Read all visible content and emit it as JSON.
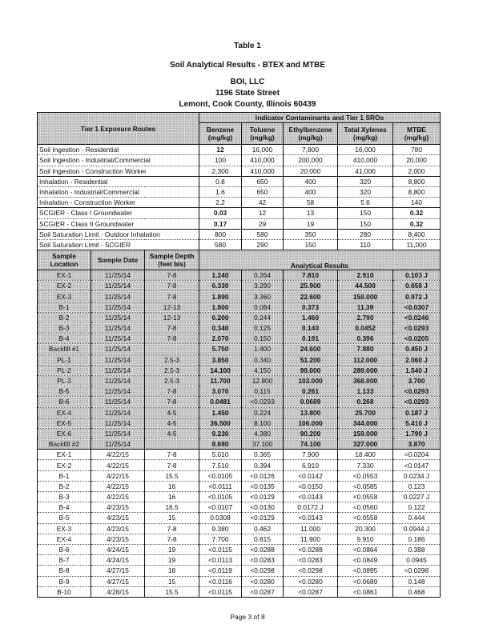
{
  "title": {
    "table_no": "Table 1",
    "subtitle": "Soil Analytical Results - BTEX and MTBE",
    "company": "BOI, LLC",
    "street": "1196 State Street",
    "city": "Lemont, Cook County, Illinois 60439"
  },
  "header": {
    "routes_label": "Tier 1 Exposure Routes",
    "group_label": "Indicator Contaminants and Tier 1 SROs",
    "columns": [
      "Benzene (mg/kg)",
      "Toluene (mg/kg)",
      "Ethylbenzene (mg/kg)",
      "Total Xylenes (mg/kg)",
      "MTBE (mg/kg)"
    ]
  },
  "sros": [
    {
      "route": "Soil Ingestion - Residential",
      "v": [
        "12",
        "16,000",
        "7,800",
        "16,000",
        "780"
      ],
      "grp": true
    },
    {
      "route": "Soil Ingestion - Industrial/Commercial",
      "v": [
        "100",
        "410,000",
        "200,000",
        "410,000",
        "20,000"
      ]
    },
    {
      "route": "Soil Ingestion - Construction Worker",
      "v": [
        "2,300",
        "410,000",
        "20,000",
        "41,000",
        "2,000"
      ]
    },
    {
      "route": "Inhalation - Residential",
      "v": [
        "0.8",
        "650",
        "400",
        "320",
        "8,800"
      ],
      "grp": true
    },
    {
      "route": "Inhalation - Industrial/Commercial",
      "v": [
        "1.6",
        "650",
        "400",
        "320",
        "8,800"
      ]
    },
    {
      "route": "Inhalation - Construction Worker",
      "v": [
        "2.2",
        "42",
        "58",
        "5.6",
        "140"
      ]
    },
    {
      "route": "SCGIER - Class I Groundwater",
      "v": [
        "0.03",
        "12",
        "13",
        "150",
        "0.32"
      ],
      "grp": true
    },
    {
      "route": "SCGIER - Class II Groundwater",
      "v": [
        "0.17",
        "29",
        "19",
        "150",
        "0.32"
      ]
    },
    {
      "route": "Soil Saturation Limit - Outdoor Inhalation",
      "v": [
        "800",
        "580",
        "350",
        "280",
        "8,400"
      ],
      "grp": true
    },
    {
      "route": "Soil Saturation Limit - SCGIER",
      "v": [
        "580",
        "290",
        "150",
        "110",
        "11,000"
      ]
    }
  ],
  "sample_header": {
    "location": "Sample Location",
    "date": "Sample Date",
    "depth": "Sample Depth (feet bls)",
    "results": "Analytical Results"
  },
  "samples": [
    {
      "loc": "EX-1",
      "date": "11/25/14",
      "depth": "7-8",
      "v": [
        "1.240",
        "0.264",
        "7.810",
        "2.910",
        "0.103 J"
      ],
      "shade": true
    },
    {
      "loc": "EX-2",
      "date": "11/25/14",
      "depth": "7-8",
      "v": [
        "6.330",
        "3.290",
        "25.900",
        "44.500",
        "0.658 J"
      ],
      "shade": true
    },
    {
      "loc": "EX-3",
      "date": "11/25/14",
      "depth": "7-8",
      "v": [
        "1.890",
        "3.360",
        "22.600",
        "158.000",
        "0.972 J"
      ],
      "shade": true
    },
    {
      "loc": "B-1",
      "date": "11/25/14",
      "depth": "12-13",
      "v": [
        "1.800",
        "0.084",
        "0.373",
        "11.39",
        "<0.0307"
      ],
      "shade": true
    },
    {
      "loc": "B-2",
      "date": "11/25/14",
      "depth": "12-13",
      "v": [
        "6.200",
        "0.244",
        "1.460",
        "2.790",
        "<0.0246"
      ],
      "shade": true
    },
    {
      "loc": "B-3",
      "date": "11/25/14",
      "depth": "7-8",
      "v": [
        "0.340",
        "0.125",
        "0.140",
        "0.0452",
        "<0.0293"
      ],
      "shade": true
    },
    {
      "loc": "B-4",
      "date": "11/25/14",
      "depth": "7-8",
      "v": [
        "2.070",
        "0.150",
        "0.191",
        "0.396",
        "<0.0205"
      ],
      "shade": true
    },
    {
      "loc": "Backfill #1",
      "date": "11/25/14",
      "depth": "",
      "v": [
        "5.750",
        "1.400",
        "24.600",
        "7.880",
        "0.450 J"
      ],
      "shade": true
    },
    {
      "loc": "PL-1",
      "date": "11/25/14",
      "depth": "2.5-3",
      "v": [
        "3.850",
        "0.340",
        "51.200",
        "112.000",
        "2.060 J"
      ],
      "shade": true
    },
    {
      "loc": "PL-2",
      "date": "11/25/14",
      "depth": "2.5-3",
      "v": [
        "14.100",
        "4.150",
        "98.000",
        "289.000",
        "1.540 J"
      ],
      "shade": true
    },
    {
      "loc": "PL-3",
      "date": "11/25/14",
      "depth": "2.5-3",
      "v": [
        "11.700",
        "12.800",
        "103.000",
        "368.000",
        "3.700"
      ],
      "shade": true
    },
    {
      "loc": "B-5",
      "date": "11/25/14",
      "depth": "7-8",
      "v": [
        "3.070",
        "0.115",
        "0.261",
        "1.133",
        "<0.0293"
      ],
      "shade": true
    },
    {
      "loc": "B-6",
      "date": "11/25/14",
      "depth": "7-8",
      "v": [
        "0.0481",
        "<0.0293",
        "0.0689",
        "0.268",
        "<0.0293"
      ],
      "shade": true
    },
    {
      "loc": "EX-4",
      "date": "11/25/14",
      "depth": "4-5",
      "v": [
        "1.450",
        "0.224",
        "13.800",
        "25.700",
        "0.187 J"
      ],
      "shade": true
    },
    {
      "loc": "EX-5",
      "date": "11/25/14",
      "depth": "4-5",
      "v": [
        "36.500",
        "8.100",
        "106.000",
        "344.000",
        "5.410 J"
      ],
      "shade": true
    },
    {
      "loc": "EX-6",
      "date": "11/25/14",
      "depth": "4-5",
      "v": [
        "9.230",
        "4.380",
        "90.200",
        "159.000",
        "1.790 J"
      ],
      "shade": true
    },
    {
      "loc": "Backfill #2",
      "date": "11/25/14",
      "depth": "",
      "v": [
        "8.680",
        "37.100",
        "74.100",
        "327.000",
        "3.870"
      ],
      "shade": true
    },
    {
      "loc": "EX-1",
      "date": "4/22/15",
      "depth": "7-8",
      "v": [
        "5.010",
        "0.365",
        "7.900",
        "18.400",
        "<0.0204"
      ]
    },
    {
      "loc": "EX-2",
      "date": "4/22/15",
      "depth": "7-8",
      "v": [
        "7.510",
        "0.394",
        "6.910",
        "7.330",
        "<0.0147"
      ]
    },
    {
      "loc": "B-1",
      "date": "4/22/15",
      "depth": "15.5",
      "v": [
        "<0.0105",
        "<0.0126",
        "<0.0142",
        "<0.0553",
        "0.0234 J"
      ]
    },
    {
      "loc": "B-2",
      "date": "4/22/15",
      "depth": "16",
      "v": [
        "<0.0111",
        "<0.0135",
        "<0.0150",
        "<0.0585",
        "0.123"
      ]
    },
    {
      "loc": "B-3",
      "date": "4/22/15",
      "depth": "16",
      "v": [
        "<0.0105",
        "<0.0129",
        "<0.0143",
        "<0.0558",
        "0.0227 J"
      ]
    },
    {
      "loc": "B-4",
      "date": "4/23/15",
      "depth": "16.5",
      "v": [
        "<0.0107",
        "<0.0130",
        "0.0172 J",
        "<0.0560",
        "0.122"
      ]
    },
    {
      "loc": "B-5",
      "date": "4/23/15",
      "depth": "15",
      "v": [
        "0.0308",
        "<0.0129",
        "<0.0143",
        "<0.0558",
        "0.444"
      ]
    },
    {
      "loc": "EX-3",
      "date": "4/23/15",
      "depth": "7-8",
      "v": [
        "9.380",
        "0.462",
        "11.000",
        "20.300",
        "0.0944 J"
      ]
    },
    {
      "loc": "EX-4",
      "date": "4/23/15",
      "depth": "7-8",
      "v": [
        "7.700",
        "0.815",
        "11.900",
        "9.910",
        "0.186"
      ]
    },
    {
      "loc": "B-6",
      "date": "4/24/15",
      "depth": "19",
      "v": [
        "<0.0115",
        "<0.0288",
        "<0.0288",
        "<0.0864",
        "0.388"
      ]
    },
    {
      "loc": "B-7",
      "date": "4/24/15",
      "depth": "19",
      "v": [
        "<0.0113",
        "<0.0283",
        "<0.0283",
        "<0.0849",
        "0.0945"
      ]
    },
    {
      "loc": "B-8",
      "date": "4/27/15",
      "depth": "18",
      "v": [
        "<0.0119",
        "<0.0298",
        "<0.0298",
        "<0.0895",
        "<0.0298"
      ]
    },
    {
      "loc": "B-9",
      "date": "4/27/15",
      "depth": "15",
      "v": [
        "<0.0116",
        "<0.0280",
        "<0.0280",
        "<0.0689",
        "0.148"
      ]
    },
    {
      "loc": "B-10",
      "date": "4/28/15",
      "depth": "15.5",
      "v": [
        "<0.0115",
        "<0.0287",
        "<0.0287",
        "<0.0861",
        "0.468"
      ]
    }
  ],
  "footer": "Page 3 of 8"
}
